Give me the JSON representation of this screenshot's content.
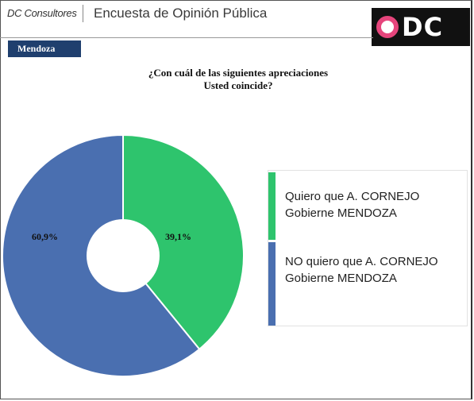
{
  "header": {
    "brand": "DC Consultores",
    "survey_title": "Encuesta de Opinión Pública",
    "logo_text": "DC"
  },
  "region": "Mendoza",
  "question": {
    "line1": "¿Con cuál de las siguientes apreciaciones",
    "line2": "Usted coincide?"
  },
  "colors": {
    "yes": "#2ec46d",
    "no": "#4a6fb0"
  },
  "chart_data": {
    "type": "pie",
    "title": "¿Con cuál de las siguientes apreciaciones Usted coincide?",
    "donut": true,
    "legend_position": "right",
    "slices": [
      {
        "label": "Quiero que A. CORNEJO Gobierne MENDOZA",
        "value": 39.1,
        "display": "39,1%",
        "color": "#2ec46d"
      },
      {
        "label": "NO quiero que A. CORNEJO Gobierne MENDOZA",
        "value": 60.9,
        "display": "60,9%",
        "color": "#4a6fb0"
      }
    ]
  }
}
